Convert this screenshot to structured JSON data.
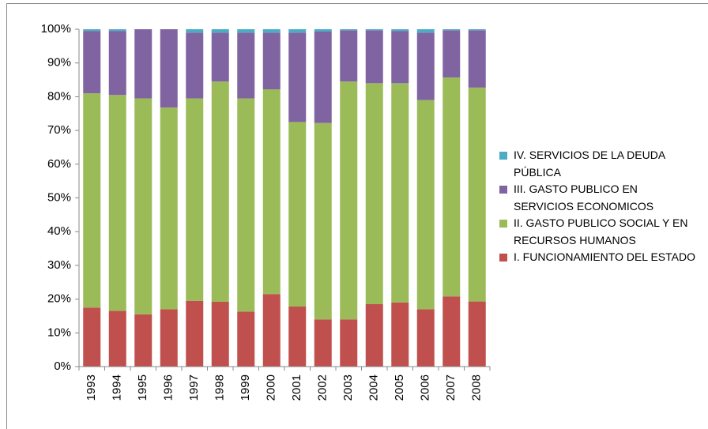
{
  "chart_data": {
    "type": "stacked_bar",
    "categories": [
      "1993",
      "1994",
      "1995",
      "1996",
      "1997",
      "1998",
      "1999",
      "2000",
      "2001",
      "2002",
      "2003",
      "2004",
      "2005",
      "2006",
      "2007",
      "2008"
    ],
    "series": [
      {
        "name": "I. FUNCIONAMIENTO  DEL ESTADO",
        "color": "#c0504d",
        "values": [
          17.5,
          16.5,
          15.5,
          17,
          19.5,
          19.2,
          16.3,
          21.5,
          17.8,
          14,
          14,
          18.5,
          19,
          17,
          20.8,
          19.3
        ]
      },
      {
        "name": "II. GASTO PUBLICO SOCIAL Y EN RECURSOS  HUMANOS",
        "color": "#9bbb59",
        "values": [
          63.5,
          64,
          64,
          59.8,
          60,
          65.3,
          63.2,
          60.7,
          54.7,
          58.2,
          70.5,
          65.5,
          65,
          62,
          64.9,
          63.4
        ]
      },
      {
        "name": "III. GASTO PUBLICO  EN SERVICIOS ECONOMICOS",
        "color": "#8064a2",
        "values": [
          18.5,
          19,
          20.5,
          23.2,
          19.5,
          14.5,
          19.5,
          16.8,
          26.5,
          27.1,
          15.2,
          15.7,
          15.5,
          20,
          14,
          17
        ]
      },
      {
        "name": "IV. SERVICIOS  DE LA DEUDA PÚBLICA",
        "color": "#4bacc6",
        "values": [
          0.5,
          0.5,
          0,
          0,
          1,
          1,
          1,
          1,
          1,
          0.7,
          0.3,
          0.3,
          0.5,
          1,
          0.3,
          0.3
        ]
      }
    ],
    "ylim": [
      0,
      100
    ],
    "yticks": [
      {
        "value": 0,
        "label": "0%"
      },
      {
        "value": 10,
        "label": "10%"
      },
      {
        "value": 20,
        "label": "20%"
      },
      {
        "value": 30,
        "label": "30%"
      },
      {
        "value": 40,
        "label": "40%"
      },
      {
        "value": 50,
        "label": "50%"
      },
      {
        "value": 60,
        "label": "60%"
      },
      {
        "value": 70,
        "label": "70%"
      },
      {
        "value": 80,
        "label": "80%"
      },
      {
        "value": 90,
        "label": "90%"
      },
      {
        "value": 100,
        "label": "100%"
      }
    ],
    "grid": false,
    "legend": "right"
  }
}
